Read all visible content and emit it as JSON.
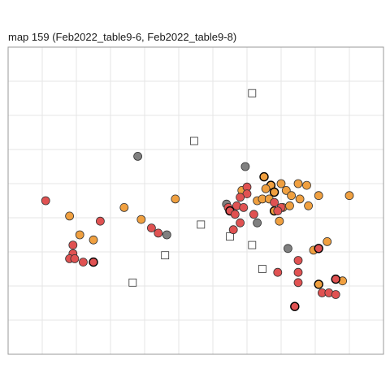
{
  "chart_data": {
    "type": "scatter",
    "title": "map 159 (Feb2022_table9-6, Feb2022_table9-8)",
    "xlabel": "",
    "ylabel": "",
    "xlim": [
      0,
      110
    ],
    "ylim": [
      0,
      90
    ],
    "grid": true,
    "colors": {
      "red": "#e05252",
      "orange": "#f0a040",
      "gray": "#808080",
      "hollow": "#ffffff",
      "grid": "#e6e6e6",
      "border": "#999999"
    },
    "series": [
      {
        "marker": "circle",
        "fill": "red",
        "points": [
          {
            "x": 11,
            "y": 45
          },
          {
            "x": 27,
            "y": 39
          },
          {
            "x": 19,
            "y": 32
          },
          {
            "x": 19,
            "y": 29.5
          },
          {
            "x": 18,
            "y": 28
          },
          {
            "x": 19.5,
            "y": 28
          },
          {
            "x": 22,
            "y": 27
          },
          {
            "x": 25,
            "y": 27,
            "bold": true
          },
          {
            "x": 42,
            "y": 37
          },
          {
            "x": 44,
            "y": 35.5
          },
          {
            "x": 64.5,
            "y": 43
          },
          {
            "x": 67,
            "y": 43.5
          },
          {
            "x": 65,
            "y": 42,
            "bold": true
          },
          {
            "x": 66.5,
            "y": 41
          },
          {
            "x": 69,
            "y": 43
          },
          {
            "x": 70,
            "y": 49
          },
          {
            "x": 70,
            "y": 47
          },
          {
            "x": 68,
            "y": 46
          },
          {
            "x": 68,
            "y": 38.5
          },
          {
            "x": 66,
            "y": 36.5
          },
          {
            "x": 72,
            "y": 41
          },
          {
            "x": 78,
            "y": 44.5
          },
          {
            "x": 80,
            "y": 43
          },
          {
            "x": 79,
            "y": 42
          },
          {
            "x": 85,
            "y": 27.5
          },
          {
            "x": 85,
            "y": 24
          },
          {
            "x": 85,
            "y": 21
          },
          {
            "x": 79,
            "y": 24
          },
          {
            "x": 91,
            "y": 31,
            "bold": true
          },
          {
            "x": 96,
            "y": 22,
            "bold": true
          },
          {
            "x": 92,
            "y": 18
          },
          {
            "x": 94,
            "y": 18
          },
          {
            "x": 96,
            "y": 17.5
          },
          {
            "x": 84,
            "y": 14,
            "bold": true
          }
        ]
      },
      {
        "marker": "circle",
        "fill": "orange",
        "points": [
          {
            "x": 18,
            "y": 40.5
          },
          {
            "x": 21,
            "y": 35
          },
          {
            "x": 25,
            "y": 33.5
          },
          {
            "x": 34,
            "y": 43
          },
          {
            "x": 39,
            "y": 39.5
          },
          {
            "x": 49,
            "y": 45.5
          },
          {
            "x": 75,
            "y": 52,
            "bold": true
          },
          {
            "x": 77,
            "y": 49.5,
            "bold": true
          },
          {
            "x": 75.5,
            "y": 48.5
          },
          {
            "x": 78,
            "y": 47.5,
            "bold": true
          },
          {
            "x": 80,
            "y": 50
          },
          {
            "x": 81.5,
            "y": 48
          },
          {
            "x": 85,
            "y": 50
          },
          {
            "x": 87.5,
            "y": 49.5
          },
          {
            "x": 91,
            "y": 46.5
          },
          {
            "x": 100,
            "y": 46.5
          },
          {
            "x": 68.5,
            "y": 48
          },
          {
            "x": 73,
            "y": 45
          },
          {
            "x": 74.5,
            "y": 45.5
          },
          {
            "x": 76.5,
            "y": 45.5
          },
          {
            "x": 83,
            "y": 46.5
          },
          {
            "x": 85.5,
            "y": 45.5
          },
          {
            "x": 88,
            "y": 43.5
          },
          {
            "x": 78,
            "y": 42,
            "bold": true
          },
          {
            "x": 80.5,
            "y": 43
          },
          {
            "x": 82.5,
            "y": 43.5
          },
          {
            "x": 79.5,
            "y": 39
          },
          {
            "x": 93.5,
            "y": 33
          },
          {
            "x": 89.5,
            "y": 30.5
          },
          {
            "x": 91,
            "y": 20.5,
            "bold": true
          },
          {
            "x": 98,
            "y": 21.5
          }
        ]
      },
      {
        "marker": "circle",
        "fill": "gray",
        "points": [
          {
            "x": 38,
            "y": 58
          },
          {
            "x": 69.5,
            "y": 55
          },
          {
            "x": 64,
            "y": 44
          },
          {
            "x": 73,
            "y": 38.5
          },
          {
            "x": 46.5,
            "y": 35
          },
          {
            "x": 82,
            "y": 31
          }
        ]
      },
      {
        "marker": "square",
        "fill": "hollow",
        "points": [
          {
            "x": 71.5,
            "y": 76.5
          },
          {
            "x": 54.5,
            "y": 62.5
          },
          {
            "x": 56.5,
            "y": 38
          },
          {
            "x": 65,
            "y": 34.5
          },
          {
            "x": 71.5,
            "y": 32
          },
          {
            "x": 46,
            "y": 29
          },
          {
            "x": 74.5,
            "y": 25
          },
          {
            "x": 36.5,
            "y": 21
          }
        ]
      }
    ]
  }
}
